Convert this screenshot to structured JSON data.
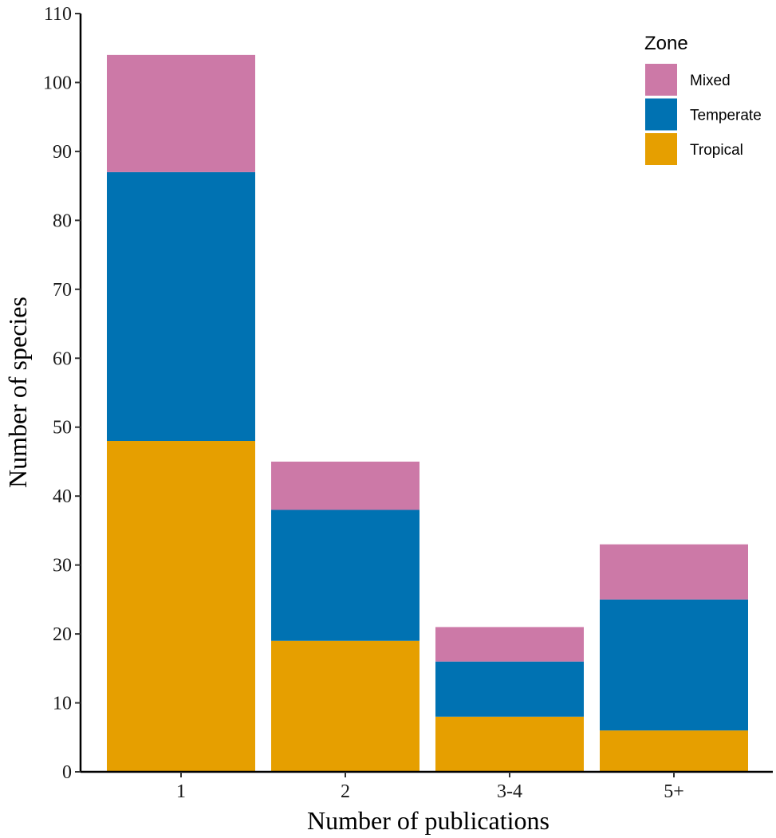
{
  "chart_data": {
    "type": "bar",
    "stacked": true,
    "title": "",
    "xlabel": "Number of publications",
    "ylabel": "Number of species",
    "categories": [
      "1",
      "2",
      "3-4",
      "5+"
    ],
    "ylim": [
      0,
      110
    ],
    "yticks": [
      0,
      10,
      20,
      30,
      40,
      50,
      60,
      70,
      80,
      90,
      100,
      110
    ],
    "grid": false,
    "legend": {
      "title": "Zone",
      "position": "top-right",
      "order": [
        "Mixed",
        "Temperate",
        "Tropical"
      ]
    },
    "series": [
      {
        "name": "Tropical",
        "color": "#E69F00",
        "values": [
          48,
          19,
          8,
          6
        ]
      },
      {
        "name": "Temperate",
        "color": "#0072B2",
        "values": [
          39,
          19,
          8,
          19
        ]
      },
      {
        "name": "Mixed",
        "color": "#CC79A7",
        "values": [
          17,
          7,
          5,
          8
        ]
      }
    ]
  }
}
